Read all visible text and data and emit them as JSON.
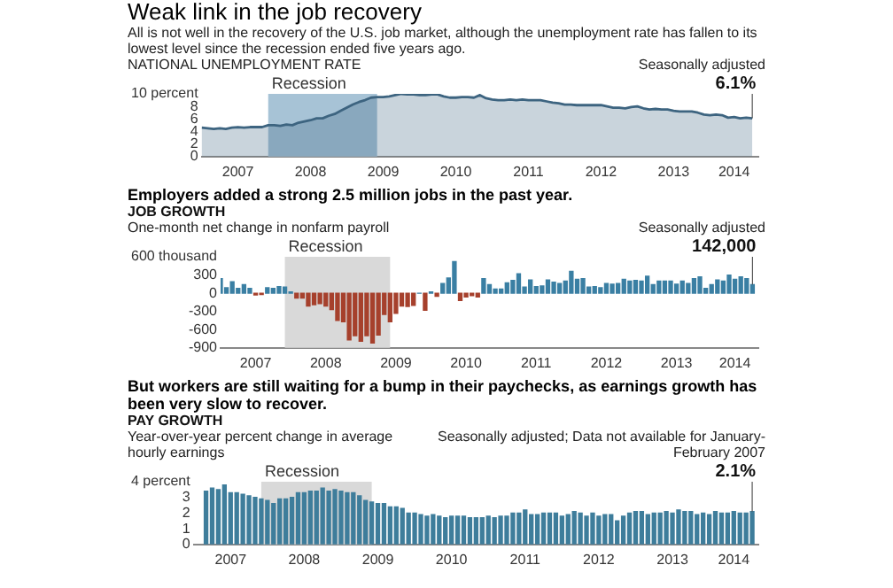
{
  "chart_data": [
    {
      "type": "area",
      "title": "Weak link in the job recovery",
      "subtitle": "All is not well in the recovery of the U.S. job market, although the unemployment rate has fallen to its lowest level since the recession ended five years ago.",
      "ylabel": "NATIONAL UNEMPLOYMENT RATE",
      "x": [
        "2007-01",
        "2007-02",
        "2007-03",
        "2007-04",
        "2007-05",
        "2007-06",
        "2007-07",
        "2007-08",
        "2007-09",
        "2007-10",
        "2007-11",
        "2007-12",
        "2008-01",
        "2008-02",
        "2008-03",
        "2008-04",
        "2008-05",
        "2008-06",
        "2008-07",
        "2008-08",
        "2008-09",
        "2008-10",
        "2008-11",
        "2008-12",
        "2009-01",
        "2009-02",
        "2009-03",
        "2009-04",
        "2009-05",
        "2009-06",
        "2009-07",
        "2009-08",
        "2009-09",
        "2009-10",
        "2009-11",
        "2009-12",
        "2010-01",
        "2010-02",
        "2010-03",
        "2010-04",
        "2010-05",
        "2010-06",
        "2010-07",
        "2010-08",
        "2010-09",
        "2010-10",
        "2010-11",
        "2010-12",
        "2011-01",
        "2011-02",
        "2011-03",
        "2011-04",
        "2011-05",
        "2011-06",
        "2011-07",
        "2011-08",
        "2011-09",
        "2011-10",
        "2011-11",
        "2011-12",
        "2012-01",
        "2012-02",
        "2012-03",
        "2012-04",
        "2012-05",
        "2012-06",
        "2012-07",
        "2012-08",
        "2012-09",
        "2012-10",
        "2012-11",
        "2012-12",
        "2013-01",
        "2013-02",
        "2013-03",
        "2013-04",
        "2013-05",
        "2013-06",
        "2013-07",
        "2013-08",
        "2013-09",
        "2013-10",
        "2013-11",
        "2013-12",
        "2014-01",
        "2014-02",
        "2014-03",
        "2014-04",
        "2014-05",
        "2014-06",
        "2014-07",
        "2014-08"
      ],
      "values": [
        4.6,
        4.5,
        4.4,
        4.5,
        4.4,
        4.6,
        4.7,
        4.6,
        4.7,
        4.7,
        4.7,
        5.0,
        5.0,
        4.9,
        5.1,
        5.0,
        5.4,
        5.6,
        5.8,
        6.1,
        6.1,
        6.5,
        6.8,
        7.3,
        7.8,
        8.3,
        8.7,
        9.0,
        9.4,
        9.5,
        9.5,
        9.6,
        9.8,
        10.0,
        9.9,
        9.9,
        9.8,
        9.8,
        9.9,
        9.9,
        9.6,
        9.4,
        9.4,
        9.5,
        9.5,
        9.4,
        9.8,
        9.3,
        9.1,
        9.0,
        9.0,
        9.1,
        9.0,
        9.1,
        9.0,
        9.0,
        9.0,
        8.8,
        8.6,
        8.5,
        8.3,
        8.3,
        8.2,
        8.2,
        8.2,
        8.2,
        8.2,
        8.0,
        7.8,
        7.8,
        7.7,
        7.9,
        8.0,
        7.7,
        7.5,
        7.6,
        7.5,
        7.5,
        7.3,
        7.2,
        7.2,
        7.2,
        7.0,
        6.7,
        6.6,
        6.7,
        6.6,
        6.2,
        6.3,
        6.1,
        6.2,
        6.1
      ],
      "color": "#3d6480",
      "xlim": [
        "2007-01",
        "2014-09"
      ],
      "xticks": [
        {
          "value": "2007-07",
          "label": "2007"
        },
        {
          "value": "2008-07",
          "label": "2008"
        },
        {
          "value": "2009-07",
          "label": "2009"
        },
        {
          "value": "2010-07",
          "label": "2010"
        },
        {
          "value": "2011-07",
          "label": "2011"
        },
        {
          "value": "2012-07",
          "label": "2012"
        },
        {
          "value": "2013-07",
          "label": "2013"
        },
        {
          "value": "2014-05",
          "label": "2014"
        }
      ],
      "ylim": [
        0,
        10
      ],
      "yticks": [
        0,
        2,
        4,
        6,
        8,
        {
          "value": 10,
          "label": "10 percent"
        }
      ],
      "bands": [
        {
          "axis": "x",
          "from": "2007-12",
          "to": "2009-06",
          "label": "Recession",
          "color": "#a7c3d6"
        }
      ],
      "annotations": [
        {
          "text": "6.1%",
          "x": "2014-08",
          "y": 6.1
        },
        "Seasonally adjusted"
      ]
    },
    {
      "type": "bar",
      "title": "Employers added a strong 2.5 million jobs in the past year.",
      "subtitle": "JOB GROWTH",
      "ylabel": "One-month net change in nonfarm payroll",
      "x": [
        "2007-01",
        "2007-02",
        "2007-03",
        "2007-04",
        "2007-05",
        "2007-06",
        "2007-07",
        "2007-08",
        "2007-09",
        "2007-10",
        "2007-11",
        "2007-12",
        "2008-01",
        "2008-02",
        "2008-03",
        "2008-04",
        "2008-05",
        "2008-06",
        "2008-07",
        "2008-08",
        "2008-09",
        "2008-10",
        "2008-11",
        "2008-12",
        "2009-01",
        "2009-02",
        "2009-03",
        "2009-04",
        "2009-05",
        "2009-06",
        "2009-07",
        "2009-08",
        "2009-09",
        "2009-10",
        "2009-11",
        "2009-12",
        "2010-01",
        "2010-02",
        "2010-03",
        "2010-04",
        "2010-05",
        "2010-06",
        "2010-07",
        "2010-08",
        "2010-09",
        "2010-10",
        "2010-11",
        "2010-12",
        "2011-01",
        "2011-02",
        "2011-03",
        "2011-04",
        "2011-05",
        "2011-06",
        "2011-07",
        "2011-08",
        "2011-09",
        "2011-10",
        "2011-11",
        "2011-12",
        "2012-01",
        "2012-02",
        "2012-03",
        "2012-04",
        "2012-05",
        "2012-06",
        "2012-07",
        "2012-08",
        "2012-09",
        "2012-10",
        "2012-11",
        "2012-12",
        "2013-01",
        "2013-02",
        "2013-03",
        "2013-04",
        "2013-05",
        "2013-06",
        "2013-07",
        "2013-08",
        "2013-09",
        "2013-10",
        "2013-11",
        "2013-12",
        "2014-01",
        "2014-02",
        "2014-03",
        "2014-04",
        "2014-05",
        "2014-06",
        "2014-07",
        "2014-08"
      ],
      "values": [
        240,
        90,
        190,
        80,
        140,
        80,
        -30,
        -20,
        90,
        80,
        110,
        100,
        20,
        -80,
        -80,
        -210,
        -190,
        -170,
        -210,
        -270,
        -450,
        -470,
        -770,
        -700,
        -790,
        -700,
        -820,
        -690,
        -350,
        -470,
        -330,
        -210,
        -220,
        -200,
        0,
        -280,
        20,
        -50,
        160,
        250,
        520,
        -120,
        -60,
        -40,
        -60,
        240,
        140,
        70,
        70,
        170,
        210,
        320,
        100,
        220,
        110,
        120,
        220,
        180,
        160,
        200,
        360,
        230,
        240,
        100,
        110,
        90,
        160,
        150,
        160,
        230,
        200,
        210,
        200,
        280,
        140,
        200,
        200,
        200,
        150,
        200,
        160,
        240,
        270,
        80,
        140,
        220,
        200,
        300,
        230,
        270,
        240,
        142
      ],
      "colors": [
        "#3a7fa3",
        "#3a7fa3",
        "#3a7fa3",
        "#3a7fa3",
        "#3a7fa3",
        "#3a7fa3",
        "#a6402c",
        "#a6402c",
        "#3a7fa3",
        "#3a7fa3",
        "#3a7fa3",
        "#3a7fa3",
        "#3a7fa3",
        "#a6402c",
        "#a6402c",
        "#a6402c",
        "#a6402c",
        "#a6402c",
        "#a6402c",
        "#a6402c",
        "#a6402c",
        "#a6402c",
        "#a6402c",
        "#a6402c",
        "#a6402c",
        "#a6402c",
        "#a6402c",
        "#a6402c",
        "#a6402c",
        "#a6402c",
        "#a6402c",
        "#a6402c",
        "#a6402c",
        "#a6402c",
        "#3a7fa3",
        "#a6402c",
        "#3a7fa3",
        "#a6402c",
        "#3a7fa3",
        "#3a7fa3",
        "#3a7fa3",
        "#a6402c",
        "#a6402c",
        "#a6402c",
        "#a6402c",
        "#3a7fa3",
        "#3a7fa3",
        "#3a7fa3",
        "#3a7fa3",
        "#3a7fa3",
        "#3a7fa3",
        "#3a7fa3",
        "#3a7fa3",
        "#3a7fa3",
        "#3a7fa3",
        "#3a7fa3",
        "#3a7fa3",
        "#3a7fa3",
        "#3a7fa3",
        "#3a7fa3",
        "#3a7fa3",
        "#3a7fa3",
        "#3a7fa3",
        "#3a7fa3",
        "#3a7fa3",
        "#3a7fa3",
        "#3a7fa3",
        "#3a7fa3",
        "#3a7fa3",
        "#3a7fa3",
        "#3a7fa3",
        "#3a7fa3",
        "#3a7fa3",
        "#3a7fa3",
        "#3a7fa3",
        "#3a7fa3",
        "#3a7fa3",
        "#3a7fa3",
        "#3a7fa3",
        "#3a7fa3",
        "#3a7fa3",
        "#3a7fa3",
        "#3a7fa3",
        "#3a7fa3",
        "#3a7fa3",
        "#3a7fa3",
        "#3a7fa3",
        "#3a7fa3",
        "#3a7fa3",
        "#3a7fa3",
        "#3a7fa3",
        "#3a7fa3"
      ],
      "xlim": [
        "2007-01",
        "2014-09"
      ],
      "xticks": [
        {
          "value": "2007-07",
          "label": "2007"
        },
        {
          "value": "2008-07",
          "label": "2008"
        },
        {
          "value": "2009-07",
          "label": "2009"
        },
        {
          "value": "2010-07",
          "label": "2010"
        },
        {
          "value": "2011-07",
          "label": "2011"
        },
        {
          "value": "2012-07",
          "label": "2012"
        },
        {
          "value": "2013-07",
          "label": "2013"
        },
        {
          "value": "2014-05",
          "label": "2014"
        }
      ],
      "ylim": [
        -900,
        600
      ],
      "yticks": [
        {
          "value": 600,
          "label": "600 thousand"
        },
        300,
        0,
        -300,
        -600,
        -900
      ],
      "bands": [
        {
          "axis": "x",
          "from": "2007-12",
          "to": "2009-06",
          "label": "Recession",
          "color": "#d9d9d9"
        }
      ],
      "annotations": [
        {
          "text": "142,000",
          "x": "2014-08",
          "y": 142
        },
        "Seasonally adjusted"
      ]
    },
    {
      "type": "bar",
      "title": "But workers are still waiting for a bump in their paychecks, as earnings growth has been very slow to recover.",
      "subtitle": "PAY GROWTH",
      "ylabel": "Year-over-year percent change in average hourly earnings",
      "x": [
        "2007-03",
        "2007-04",
        "2007-05",
        "2007-06",
        "2007-07",
        "2007-08",
        "2007-09",
        "2007-10",
        "2007-11",
        "2007-12",
        "2008-01",
        "2008-02",
        "2008-03",
        "2008-04",
        "2008-05",
        "2008-06",
        "2008-07",
        "2008-08",
        "2008-09",
        "2008-10",
        "2008-11",
        "2008-12",
        "2009-01",
        "2009-02",
        "2009-03",
        "2009-04",
        "2009-05",
        "2009-06",
        "2009-07",
        "2009-08",
        "2009-09",
        "2009-10",
        "2009-11",
        "2009-12",
        "2010-01",
        "2010-02",
        "2010-03",
        "2010-04",
        "2010-05",
        "2010-06",
        "2010-07",
        "2010-08",
        "2010-09",
        "2010-10",
        "2010-11",
        "2010-12",
        "2011-01",
        "2011-02",
        "2011-03",
        "2011-04",
        "2011-05",
        "2011-06",
        "2011-07",
        "2011-08",
        "2011-09",
        "2011-10",
        "2011-11",
        "2011-12",
        "2012-01",
        "2012-02",
        "2012-03",
        "2012-04",
        "2012-05",
        "2012-06",
        "2012-07",
        "2012-08",
        "2012-09",
        "2012-10",
        "2012-11",
        "2012-12",
        "2013-01",
        "2013-02",
        "2013-03",
        "2013-04",
        "2013-05",
        "2013-06",
        "2013-07",
        "2013-08",
        "2013-09",
        "2013-10",
        "2013-11",
        "2013-12",
        "2014-01",
        "2014-02",
        "2014-03",
        "2014-04",
        "2014-05",
        "2014-06",
        "2014-07",
        "2014-08"
      ],
      "values": [
        3.4,
        3.6,
        3.5,
        3.8,
        3.3,
        3.3,
        3.2,
        3.1,
        3.0,
        2.9,
        2.8,
        2.6,
        2.9,
        2.9,
        3.0,
        3.3,
        3.3,
        3.4,
        3.4,
        3.6,
        3.4,
        3.5,
        3.4,
        3.3,
        3.3,
        3.1,
        2.8,
        2.7,
        2.6,
        2.6,
        2.4,
        2.4,
        2.3,
        2.0,
        2.0,
        1.9,
        1.8,
        1.9,
        1.8,
        1.7,
        1.8,
        1.8,
        1.8,
        1.7,
        1.7,
        1.7,
        1.8,
        1.7,
        1.8,
        1.8,
        2.0,
        2.0,
        2.2,
        1.9,
        1.9,
        2.0,
        2.0,
        2.0,
        1.8,
        1.9,
        2.1,
        2.0,
        1.8,
        2.0,
        1.8,
        1.9,
        1.9,
        1.5,
        1.8,
        2.0,
        2.1,
        2.1,
        1.9,
        2.0,
        2.0,
        2.1,
        2.0,
        2.2,
        2.1,
        2.1,
        1.9,
        2.0,
        1.9,
        2.1,
        2.0,
        2.0,
        2.1,
        2.0,
        2.0,
        2.1
      ],
      "color": "#3e7d9b",
      "xlim": [
        "2007-01",
        "2014-09"
      ],
      "xticks": [
        {
          "value": "2007-07",
          "label": "2007"
        },
        {
          "value": "2008-07",
          "label": "2008"
        },
        {
          "value": "2009-07",
          "label": "2009"
        },
        {
          "value": "2010-07",
          "label": "2010"
        },
        {
          "value": "2011-07",
          "label": "2011"
        },
        {
          "value": "2012-07",
          "label": "2012"
        },
        {
          "value": "2013-07",
          "label": "2013"
        },
        {
          "value": "2014-05",
          "label": "2014"
        }
      ],
      "ylim": [
        0,
        4
      ],
      "yticks": [
        0,
        1,
        2,
        3,
        {
          "value": 4,
          "label": "4 percent"
        }
      ],
      "bands": [
        {
          "axis": "x",
          "from": "2007-12",
          "to": "2009-06",
          "label": "Recession",
          "color": "#d9d9d9"
        }
      ],
      "annotations": [
        {
          "text": "2.1%",
          "x": "2014-08",
          "y": 2.1
        },
        "Seasonally adjusted; Data not available for January-February 2007"
      ]
    }
  ]
}
